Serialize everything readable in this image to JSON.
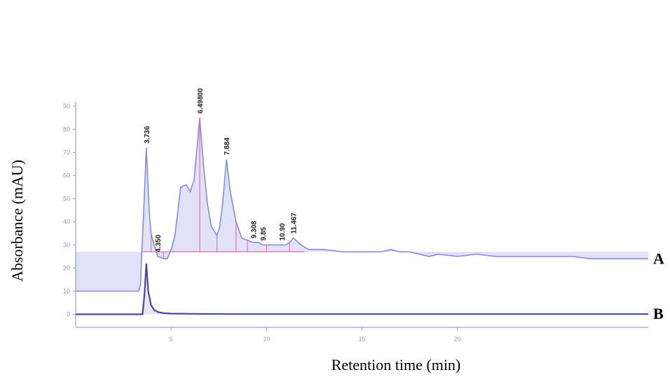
{
  "chart_data": {
    "type": "line",
    "xlabel": "Retention time (min)",
    "ylabel": "Absorbance (mAU)",
    "xlim": [
      0,
      30
    ],
    "ylim": [
      -5,
      95
    ],
    "x_ticks": [
      5,
      10,
      15,
      20
    ],
    "y_ticks": [
      0,
      10,
      20,
      30,
      40,
      50,
      60,
      70,
      80,
      90
    ],
    "grid": false,
    "series": [
      {
        "name": "A",
        "color": "#8a8ad8",
        "fill": "#c8c8f0",
        "x": [
          0,
          3.3,
          3.4,
          3.45,
          3.55,
          3.7,
          3.85,
          3.95,
          4.1,
          4.3,
          4.6,
          4.8,
          5.0,
          5.2,
          5.5,
          5.8,
          6.0,
          6.2,
          6.5,
          6.7,
          6.9,
          7.1,
          7.4,
          7.55,
          7.7,
          7.9,
          8.1,
          8.4,
          8.7,
          9.0,
          9.3,
          9.6,
          9.8,
          10.1,
          10.4,
          10.7,
          11.0,
          11.2,
          11.4,
          11.8,
          12.2,
          13.0,
          14.0,
          15.0,
          16.0,
          16.5,
          17.0,
          17.5,
          18.0,
          18.5,
          19.0,
          20.0,
          21.0,
          22.0,
          23.0,
          24.0,
          25.0,
          26.0,
          27.0,
          28.0,
          29.0,
          30.0
        ],
        "y": [
          10,
          10,
          13,
          25,
          42,
          72,
          45,
          35,
          30,
          25,
          24,
          24,
          28,
          34,
          55,
          56,
          53,
          58,
          85,
          64,
          48,
          38,
          34,
          38,
          48,
          67,
          53,
          40,
          33,
          32,
          31,
          31,
          30,
          30,
          30,
          30,
          30,
          31,
          33,
          30,
          28,
          28,
          27,
          27,
          27,
          28,
          27,
          27,
          26,
          25,
          26,
          25,
          26,
          25,
          25,
          25,
          25,
          25,
          24,
          24,
          24,
          24
        ]
      },
      {
        "name": "B",
        "color": "#4848a0",
        "fill": "#c8c8f0",
        "x": [
          0,
          3.5,
          3.6,
          3.7,
          3.8,
          3.95,
          4.1,
          4.3,
          4.6,
          5.0,
          6.0,
          8.0,
          12.0,
          16.0,
          18.0,
          19.0,
          20.0,
          24.0,
          25.0,
          26.0,
          27.0,
          28.0,
          30.0
        ],
        "y": [
          0,
          0,
          8,
          22,
          10,
          4,
          2,
          1,
          0.5,
          0.3,
          0.2,
          0.1,
          0.1,
          0.1,
          0.1,
          0.1,
          0.1,
          0.1,
          0.1,
          0.1,
          0.1,
          0.1,
          0.1
        ]
      }
    ],
    "baseline": {
      "color": "#e070c0",
      "x": [
        3.4,
        12.0
      ],
      "y": 27,
      "drops": [
        3.95,
        4.6,
        6.5,
        7.4,
        8.4,
        9.0,
        10.0,
        11.2
      ]
    },
    "peak_labels": [
      {
        "x": 3.7,
        "y": 72,
        "text": "3.736"
      },
      {
        "x": 4.3,
        "y": 25,
        "text": "4.350"
      },
      {
        "x": 6.5,
        "y": 85,
        "text": "6.49800"
      },
      {
        "x": 7.9,
        "y": 67,
        "text": "7.884"
      },
      {
        "x": 9.3,
        "y": 31,
        "text": "9.308"
      },
      {
        "x": 9.8,
        "y": 30,
        "text": "9.85"
      },
      {
        "x": 10.8,
        "y": 30,
        "text": "10.90"
      },
      {
        "x": 11.4,
        "y": 33,
        "text": "11.467"
      }
    ],
    "trace_labels": [
      "A",
      "B"
    ]
  }
}
